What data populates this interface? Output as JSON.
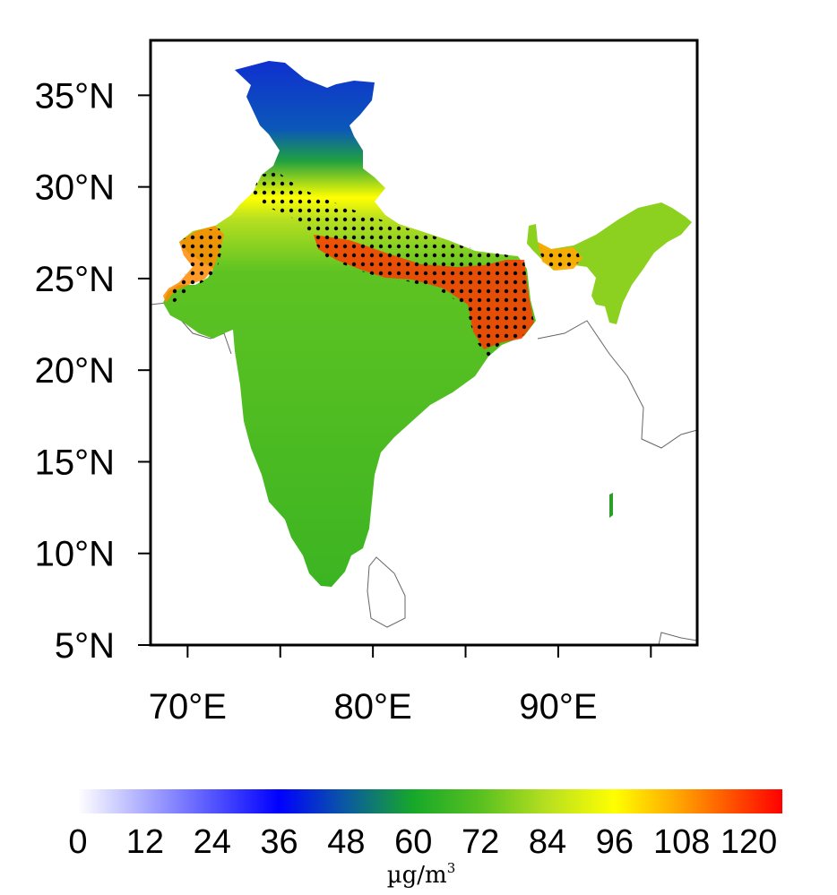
{
  "map": {
    "lat_ticks": [
      {
        "label": "35°N",
        "value": 35
      },
      {
        "label": "30°N",
        "value": 30
      },
      {
        "label": "25°N",
        "value": 25
      },
      {
        "label": "20°N",
        "value": 20
      },
      {
        "label": "15°N",
        "value": 15
      },
      {
        "label": "10°N",
        "value": 10
      },
      {
        "label": "5°N",
        "value": 5
      }
    ],
    "lon_ticks": [
      {
        "label": "70°E",
        "value": 70
      },
      {
        "label": "80°E",
        "value": 80
      },
      {
        "label": "90°E",
        "value": 90
      }
    ],
    "lon_range": [
      68,
      97.5
    ],
    "lat_range": [
      5,
      38
    ],
    "hatch_note": "dots",
    "colors": {
      "low": "#ffffff",
      "blue": "#0000ff",
      "green": "#2eaa1e",
      "yellow": "#ffff00",
      "orange": "#ff9900",
      "red": "#ff0000"
    }
  },
  "colorbar": {
    "labels": [
      "0",
      "12",
      "24",
      "36",
      "48",
      "60",
      "72",
      "84",
      "96",
      "108",
      "120"
    ],
    "min": 0,
    "max": 126,
    "stops": [
      {
        "v": 0,
        "c": "#ffffff"
      },
      {
        "v": 36,
        "c": "#0000ff"
      },
      {
        "v": 48,
        "c": "#0a5aa0"
      },
      {
        "v": 60,
        "c": "#17a82a"
      },
      {
        "v": 72,
        "c": "#58c020"
      },
      {
        "v": 84,
        "c": "#b8e020"
      },
      {
        "v": 96,
        "c": "#ffff00"
      },
      {
        "v": 108,
        "c": "#ffa000"
      },
      {
        "v": 126,
        "c": "#ff0000"
      }
    ],
    "unit_base": "µg/m",
    "unit_sup": "3"
  }
}
